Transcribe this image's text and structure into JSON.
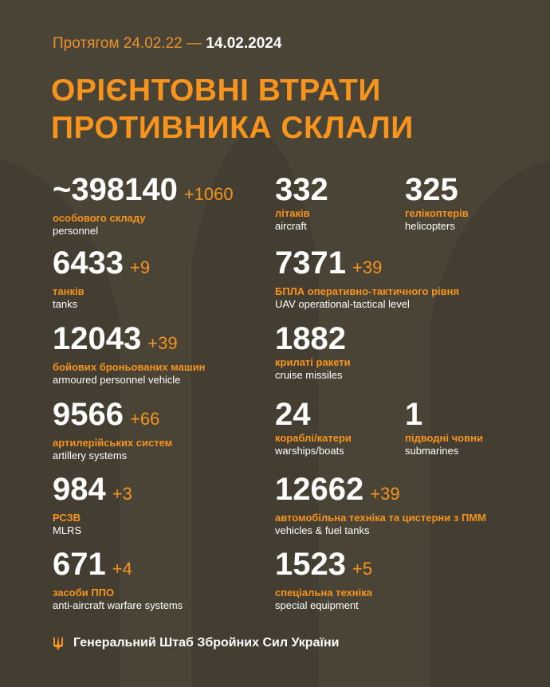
{
  "header": {
    "period_prefix": "Протягом 24.02.22 — ",
    "period_end": "14.02.2024",
    "title_line1": "ОРІЄНТОВНІ ВТРАТИ",
    "title_line2": "ПРОТИВНИКА СКЛАЛИ"
  },
  "items": [
    {
      "value": "~398140",
      "delta": "+1060",
      "ua": "особового складу",
      "en": "personnel"
    },
    {
      "value": "332",
      "delta": "",
      "ua": "літаків",
      "en": "aircraft"
    },
    {
      "value": "325",
      "delta": "",
      "ua": "гелікоптерів",
      "en": "helicopters"
    },
    {
      "value": "6433",
      "delta": "+9",
      "ua": "танків",
      "en": "tanks"
    },
    {
      "value": "7371",
      "delta": "+39",
      "ua": "БПЛА оперативно-тактичного рівня",
      "en": "UAV operational-tactical level"
    },
    {
      "value": "12043",
      "delta": "+39",
      "ua": "бойових броньованих машин",
      "en": "armoured personnel vehicle"
    },
    {
      "value": "1882",
      "delta": "",
      "ua": "крилаті ракети",
      "en": "cruise missiles"
    },
    {
      "value": "9566",
      "delta": "+66",
      "ua": "артилерійських систем",
      "en": "artillery systems"
    },
    {
      "value": "24",
      "delta": "",
      "ua": "кораблі/катери",
      "en": "warships/boats"
    },
    {
      "value": "1",
      "delta": "",
      "ua": "підводні човни",
      "en": "submarines"
    },
    {
      "value": "984",
      "delta": "+3",
      "ua": "РСЗВ",
      "en": "MLRS"
    },
    {
      "value": "12662",
      "delta": "+39",
      "ua": "автомобільна техніка та цистерни з ПММ",
      "en": "vehicles & fuel tanks"
    },
    {
      "value": "671",
      "delta": "+4",
      "ua": "засоби ППО",
      "en": "anti-aircraft warfare systems"
    },
    {
      "value": "1523",
      "delta": "+5",
      "ua": "спеціальна техніка",
      "en": "special equipment"
    }
  ],
  "footer": {
    "text": "Генеральний Штаб Збройних Сил України",
    "icon": "trident-icon"
  },
  "colors": {
    "background": "#4a4436",
    "accent": "#f7941d",
    "text": "#ffffff"
  }
}
